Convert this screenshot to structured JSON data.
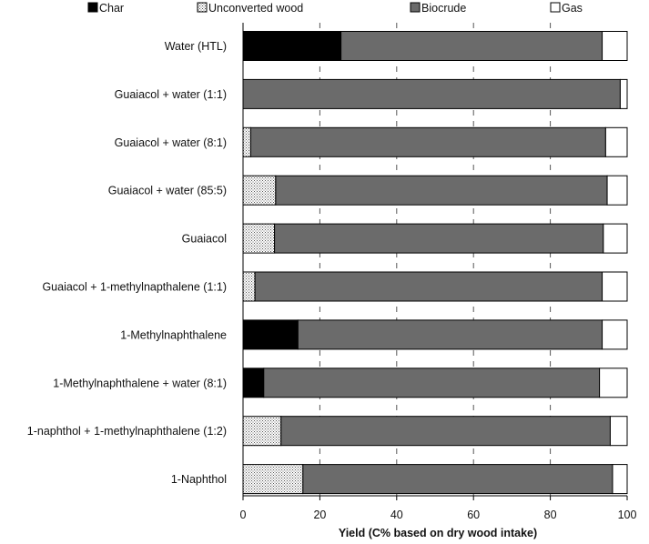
{
  "chart_data": {
    "type": "bar",
    "stacked": true,
    "orientation": "horizontal",
    "title": "",
    "xlabel": "Yield (C% based on dry wood intake)",
    "ylabel": "",
    "xlim": [
      0,
      100
    ],
    "xticks": [
      "0",
      "20",
      "40",
      "60",
      "80",
      "100"
    ],
    "grid": "vertical dashed",
    "legend_position": "top",
    "categories": [
      "Water (HTL)",
      "Guaiacol + water (1:1)",
      "Guaiacol + water (8:1)",
      "Guaiacol + water (85:5)",
      "Guaiacol",
      "Guaiacol + 1-methylnapthalene (1:1)",
      "1-Methylnaphthalene",
      "1-Methylnaphthalene + water (8:1)",
      "1-naphthol + 1-methylnaphthalene (1:2)",
      "1-Naphthol"
    ],
    "series": [
      {
        "name": "Char",
        "color": "#000000",
        "pattern": "solid",
        "values": [
          25.5,
          0,
          0,
          0,
          0,
          0,
          14.3,
          5.4,
          0,
          0
        ]
      },
      {
        "name": "Unconverted wood",
        "color": "#ffffff",
        "pattern": "dots",
        "values": [
          0,
          0,
          2.0,
          8.5,
          8.2,
          3.1,
          0,
          0,
          9.9,
          15.6
        ]
      },
      {
        "name": "Biocrude",
        "color": "#6b6b6b",
        "pattern": "solid",
        "values": [
          68.0,
          98.2,
          92.4,
          86.3,
          85.6,
          90.4,
          79.2,
          87.4,
          85.7,
          80.6
        ]
      },
      {
        "name": "Gas",
        "color": "#ffffff",
        "pattern": "solid",
        "values": [
          6.5,
          1.8,
          5.6,
          5.2,
          6.2,
          6.5,
          6.5,
          7.2,
          4.4,
          3.8
        ]
      }
    ]
  }
}
